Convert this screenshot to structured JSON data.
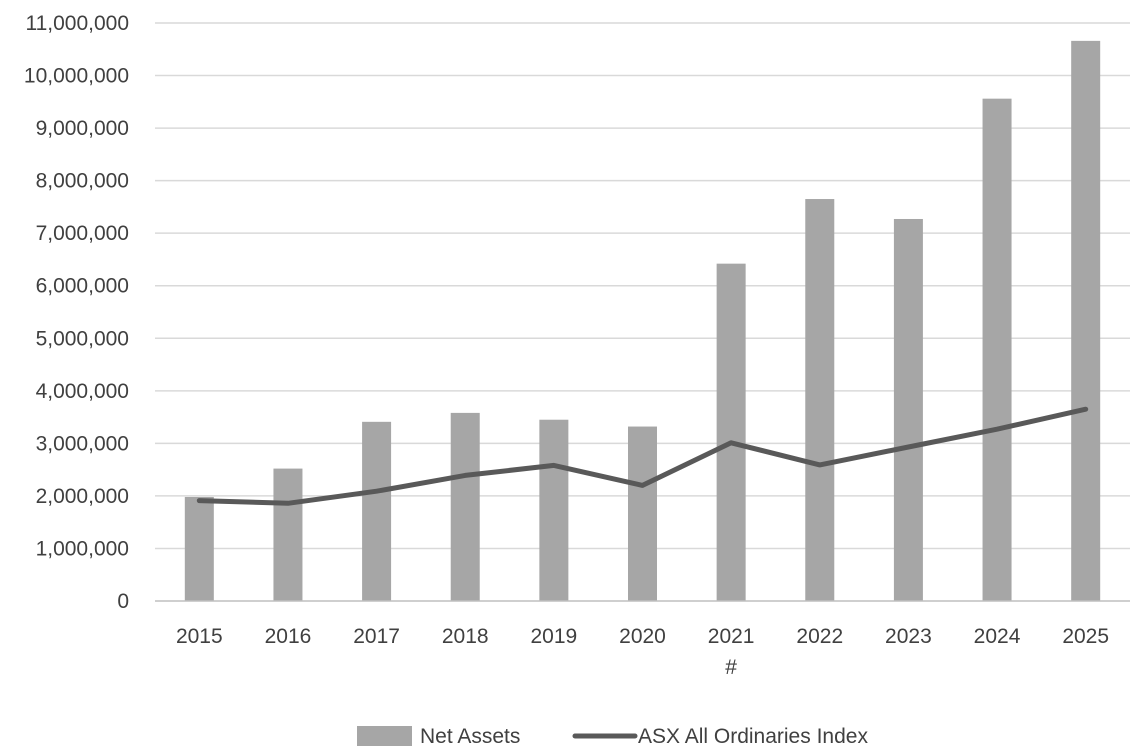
{
  "chart_data": {
    "type": "bar",
    "categories": [
      "2015",
      "2016",
      "2017",
      "2018",
      "2019",
      "2020",
      "2021",
      "2022",
      "2023",
      "2024",
      "2025"
    ],
    "category_annotations": [
      {
        "category": "2021",
        "text": "#"
      }
    ],
    "series": [
      {
        "name": "Net Assets",
        "type": "bar",
        "color": "#a6a6a6",
        "values": [
          1980000,
          2520000,
          3410000,
          3580000,
          3450000,
          3320000,
          6420000,
          7650000,
          7270000,
          9560000,
          10660000
        ]
      },
      {
        "name": "ASX All Ordinaries Index",
        "type": "line",
        "color": "#595959",
        "values": [
          1910000,
          1860000,
          2090000,
          2390000,
          2580000,
          2200000,
          3010000,
          2590000,
          2930000,
          3270000,
          3650000
        ]
      }
    ],
    "y_ticks": [
      "0",
      "1,000,000",
      "2,000,000",
      "3,000,000",
      "4,000,000",
      "5,000,000",
      "6,000,000",
      "7,000,000",
      "8,000,000",
      "9,000,000",
      "10,000,000",
      "11,000,000"
    ],
    "ylim": [
      0,
      11000000
    ],
    "grid": true,
    "legend_position": "bottom"
  }
}
